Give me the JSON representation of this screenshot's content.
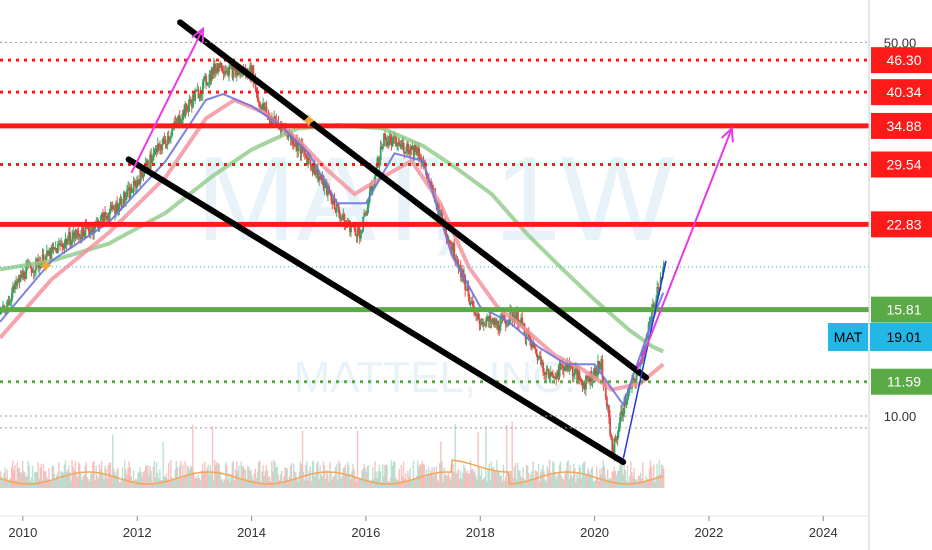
{
  "chart_data": {
    "type": "line",
    "title": "",
    "watermark": {
      "symbol": "MAT, 1W",
      "name": "MATTEL, INC."
    },
    "ticker_badge": {
      "label": "MAT",
      "value": "19.01",
      "color": "#22b7e6"
    },
    "x_ticks": [
      "2010",
      "2012",
      "2014",
      "2016",
      "2018",
      "2020",
      "2022",
      "2024"
    ],
    "x_range": [
      2009.6,
      2024.8
    ],
    "y_ticks": [
      "50.00",
      "10.00"
    ],
    "y_scale": "log",
    "y_range": [
      6.5,
      60
    ],
    "price_levels": [
      {
        "value": 46.3,
        "label": "46.30",
        "style": "dotted",
        "color": "#ff1a1a"
      },
      {
        "value": 40.34,
        "label": "40.34",
        "style": "dotted",
        "color": "#ff1a1a"
      },
      {
        "value": 34.88,
        "label": "34.88",
        "style": "solid",
        "color": "#ff1a1a"
      },
      {
        "value": 29.54,
        "label": "29.54",
        "style": "dotted",
        "color": "#ff1a1a"
      },
      {
        "value": 22.83,
        "label": "22.83",
        "style": "solid",
        "color": "#ff1a1a"
      },
      {
        "value": 15.81,
        "label": "15.81",
        "style": "solid",
        "color": "#5aab46"
      },
      {
        "value": 11.59,
        "label": "11.59",
        "style": "dotted",
        "color": "#5aab46"
      }
    ],
    "series": [
      {
        "kind": "price",
        "color": "#2e9e5b",
        "points": [
          [
            2009.6,
            15.5
          ],
          [
            2010.0,
            18.5
          ],
          [
            2010.4,
            19.8
          ],
          [
            2010.8,
            21.5
          ],
          [
            2011.2,
            22.5
          ],
          [
            2011.6,
            24.5
          ],
          [
            2011.9,
            26.5
          ],
          [
            2012.2,
            30
          ],
          [
            2012.5,
            33
          ],
          [
            2012.8,
            37
          ],
          [
            2013.1,
            41
          ],
          [
            2013.4,
            45.5
          ],
          [
            2013.7,
            44
          ],
          [
            2014.0,
            44
          ],
          [
            2014.1,
            39
          ],
          [
            2014.3,
            36
          ],
          [
            2014.5,
            35
          ],
          [
            2014.8,
            32
          ],
          [
            2015.0,
            30
          ],
          [
            2015.3,
            26.5
          ],
          [
            2015.6,
            23
          ],
          [
            2015.9,
            22
          ],
          [
            2016.1,
            27
          ],
          [
            2016.3,
            33
          ],
          [
            2016.6,
            32
          ],
          [
            2016.9,
            31.5
          ],
          [
            2017.1,
            27
          ],
          [
            2017.4,
            22
          ],
          [
            2017.7,
            18
          ],
          [
            2017.9,
            15.2
          ],
          [
            2018.3,
            14.8
          ],
          [
            2018.6,
            15.5
          ],
          [
            2018.9,
            13.5
          ],
          [
            2019.2,
            11.8
          ],
          [
            2019.5,
            12.5
          ],
          [
            2019.8,
            11.5
          ],
          [
            2020.1,
            12.5
          ],
          [
            2020.3,
            8.5
          ],
          [
            2020.5,
            10.5
          ],
          [
            2020.7,
            11.8
          ],
          [
            2020.9,
            14
          ],
          [
            2021.1,
            17.5
          ],
          [
            2021.2,
            19
          ]
        ]
      },
      {
        "kind": "ma_fast",
        "color": "#6f73e0",
        "points": [
          [
            2009.6,
            15
          ],
          [
            2010.5,
            19.5
          ],
          [
            2011.5,
            23
          ],
          [
            2012.5,
            30
          ],
          [
            2013.2,
            39
          ],
          [
            2013.5,
            40
          ],
          [
            2014.0,
            38
          ],
          [
            2014.5,
            35
          ],
          [
            2015.0,
            31
          ],
          [
            2015.5,
            25
          ],
          [
            2016.0,
            25
          ],
          [
            2016.5,
            31
          ],
          [
            2017.0,
            30
          ],
          [
            2017.5,
            20
          ],
          [
            2018.0,
            16
          ],
          [
            2018.5,
            15
          ],
          [
            2019.0,
            13.5
          ],
          [
            2019.5,
            12.5
          ],
          [
            2020.0,
            12.5
          ],
          [
            2020.5,
            10.5
          ],
          [
            2021.0,
            15
          ],
          [
            2021.2,
            17
          ]
        ]
      },
      {
        "kind": "ma_mid",
        "color": "#f48f9a",
        "points": [
          [
            2009.6,
            14
          ],
          [
            2010.5,
            18
          ],
          [
            2011.5,
            22
          ],
          [
            2012.5,
            28
          ],
          [
            2013.2,
            36
          ],
          [
            2013.7,
            39
          ],
          [
            2014.2,
            37
          ],
          [
            2014.8,
            33
          ],
          [
            2015.3,
            29
          ],
          [
            2015.8,
            26
          ],
          [
            2016.3,
            28
          ],
          [
            2016.8,
            30
          ],
          [
            2017.3,
            25
          ],
          [
            2017.8,
            19
          ],
          [
            2018.3,
            16
          ],
          [
            2018.8,
            14.5
          ],
          [
            2019.3,
            13
          ],
          [
            2019.8,
            12.2
          ],
          [
            2020.3,
            11.2
          ],
          [
            2020.8,
            11.5
          ],
          [
            2021.2,
            12.5
          ]
        ]
      },
      {
        "kind": "ma_slow",
        "color": "#8fca86",
        "points": [
          [
            2009.6,
            18.8
          ],
          [
            2010.5,
            19.5
          ],
          [
            2011.5,
            21
          ],
          [
            2012.5,
            24
          ],
          [
            2013.3,
            28
          ],
          [
            2014.0,
            31.5
          ],
          [
            2014.8,
            34.5
          ],
          [
            2015.5,
            35
          ],
          [
            2016.3,
            34.5
          ],
          [
            2017.0,
            32
          ],
          [
            2017.6,
            29
          ],
          [
            2018.2,
            26
          ],
          [
            2018.8,
            22
          ],
          [
            2019.4,
            19
          ],
          [
            2020.0,
            16.5
          ],
          [
            2020.6,
            14.5
          ],
          [
            2021.0,
            13.5
          ],
          [
            2021.2,
            13.2
          ]
        ]
      }
    ],
    "volume_avg_color": "#f2a65a"
  }
}
